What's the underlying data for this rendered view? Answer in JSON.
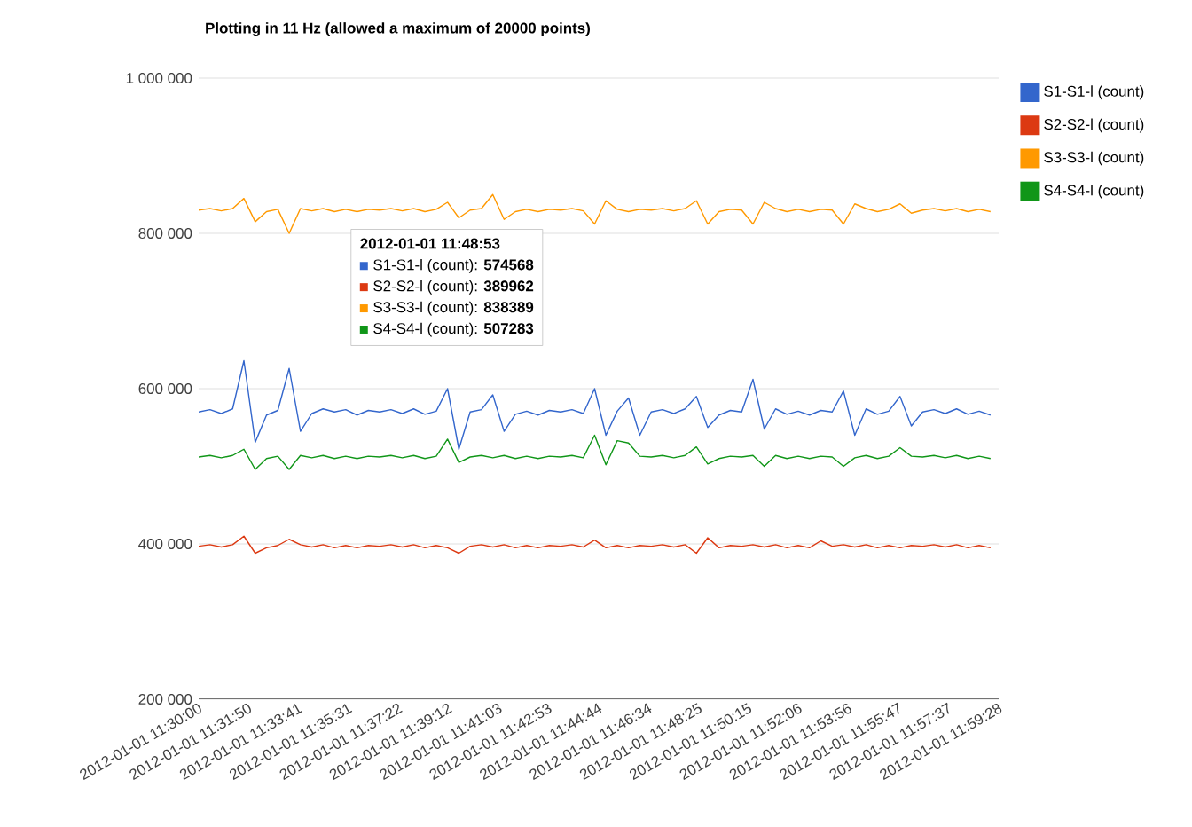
{
  "chart_data": {
    "type": "line",
    "title": "Plotting in 11 Hz (allowed a maximum of 20000 points)",
    "x": [
      "2012-01-01T11:30:00",
      "2012-01-01T11:30:25",
      "2012-01-01T11:30:50",
      "2012-01-01T11:31:15",
      "2012-01-01T11:31:40",
      "2012-01-01T11:32:05",
      "2012-01-01T11:32:30",
      "2012-01-01T11:32:55",
      "2012-01-01T11:33:20",
      "2012-01-01T11:33:45",
      "2012-01-01T11:34:10",
      "2012-01-01T11:34:35",
      "2012-01-01T11:35:00",
      "2012-01-01T11:35:25",
      "2012-01-01T11:35:50",
      "2012-01-01T11:36:15",
      "2012-01-01T11:36:40",
      "2012-01-01T11:37:05",
      "2012-01-01T11:37:30",
      "2012-01-01T11:37:55",
      "2012-01-01T11:38:20",
      "2012-01-01T11:38:45",
      "2012-01-01T11:39:10",
      "2012-01-01T11:39:35",
      "2012-01-01T11:40:00",
      "2012-01-01T11:40:25",
      "2012-01-01T11:40:50",
      "2012-01-01T11:41:15",
      "2012-01-01T11:41:40",
      "2012-01-01T11:42:05",
      "2012-01-01T11:42:30",
      "2012-01-01T11:42:55",
      "2012-01-01T11:43:20",
      "2012-01-01T11:43:45",
      "2012-01-01T11:44:10",
      "2012-01-01T11:44:35",
      "2012-01-01T11:45:00",
      "2012-01-01T11:45:25",
      "2012-01-01T11:45:50",
      "2012-01-01T11:46:15",
      "2012-01-01T11:46:40",
      "2012-01-01T11:47:05",
      "2012-01-01T11:47:30",
      "2012-01-01T11:47:55",
      "2012-01-01T11:48:20",
      "2012-01-01T11:48:45",
      "2012-01-01T11:49:10",
      "2012-01-01T11:49:35",
      "2012-01-01T11:50:00",
      "2012-01-01T11:50:25",
      "2012-01-01T11:50:50",
      "2012-01-01T11:51:15",
      "2012-01-01T11:51:40",
      "2012-01-01T11:52:05",
      "2012-01-01T11:52:30",
      "2012-01-01T11:52:55",
      "2012-01-01T11:53:20",
      "2012-01-01T11:53:45",
      "2012-01-01T11:54:10",
      "2012-01-01T11:54:35",
      "2012-01-01T11:55:00",
      "2012-01-01T11:55:25",
      "2012-01-01T11:55:50",
      "2012-01-01T11:56:15",
      "2012-01-01T11:56:40",
      "2012-01-01T11:57:05",
      "2012-01-01T11:57:30",
      "2012-01-01T11:57:55",
      "2012-01-01T11:58:20",
      "2012-01-01T11:58:45",
      "2012-01-01T11:59:10"
    ],
    "series": [
      {
        "name": "S1-S1-l (count)",
        "color": "#3366cc",
        "values": [
          570000,
          573000,
          568000,
          574000,
          636000,
          531000,
          566000,
          572000,
          626000,
          545000,
          568000,
          574000,
          570000,
          573000,
          566000,
          572000,
          570000,
          573000,
          568000,
          574000,
          567000,
          571000,
          600000,
          522000,
          570000,
          573000,
          592000,
          545000,
          567000,
          571000,
          566000,
          572000,
          570000,
          573000,
          568000,
          600000,
          540000,
          571000,
          588000,
          540000,
          570000,
          573000,
          568000,
          574000,
          590000,
          550000,
          566000,
          572000,
          570000,
          612000,
          548000,
          574000,
          567000,
          571000,
          566000,
          572000,
          570000,
          597000,
          540000,
          574000,
          567000,
          571000,
          590000,
          552000,
          570000,
          573000,
          568000,
          574000,
          567000,
          571000,
          566000
        ]
      },
      {
        "name": "S2-S2-l (count)",
        "color": "#dc3912",
        "values": [
          397000,
          399000,
          396000,
          399000,
          410000,
          388000,
          395000,
          398000,
          406000,
          399000,
          396000,
          399000,
          395000,
          398000,
          395000,
          398000,
          397000,
          399000,
          396000,
          399000,
          395000,
          398000,
          395000,
          388000,
          397000,
          399000,
          396000,
          399000,
          395000,
          398000,
          395000,
          398000,
          397000,
          399000,
          396000,
          405000,
          395000,
          398000,
          395000,
          398000,
          397000,
          399000,
          396000,
          399000,
          388000,
          408000,
          395000,
          398000,
          397000,
          399000,
          396000,
          399000,
          395000,
          398000,
          395000,
          404000,
          397000,
          399000,
          396000,
          399000,
          395000,
          398000,
          395000,
          398000,
          397000,
          399000,
          396000,
          399000,
          395000,
          398000,
          395000
        ]
      },
      {
        "name": "S3-S3-l (count)",
        "color": "#ff9900",
        "values": [
          830000,
          832000,
          829000,
          832000,
          845000,
          815000,
          828000,
          831000,
          800000,
          832000,
          829000,
          832000,
          828000,
          831000,
          828000,
          831000,
          830000,
          832000,
          829000,
          832000,
          828000,
          831000,
          840000,
          820000,
          830000,
          832000,
          850000,
          818000,
          828000,
          831000,
          828000,
          831000,
          830000,
          832000,
          829000,
          812000,
          842000,
          831000,
          828000,
          831000,
          830000,
          832000,
          829000,
          832000,
          842000,
          812000,
          828000,
          831000,
          830000,
          812000,
          840000,
          832000,
          828000,
          831000,
          828000,
          831000,
          830000,
          812000,
          838000,
          832000,
          828000,
          831000,
          838000,
          826000,
          830000,
          832000,
          829000,
          832000,
          828000,
          831000,
          828000
        ]
      },
      {
        "name": "S4-S4-l (count)",
        "color": "#109618",
        "values": [
          512000,
          514000,
          511000,
          514000,
          522000,
          496000,
          510000,
          513000,
          496000,
          514000,
          511000,
          514000,
          510000,
          513000,
          510000,
          513000,
          512000,
          514000,
          511000,
          514000,
          510000,
          513000,
          535000,
          505000,
          512000,
          514000,
          511000,
          514000,
          510000,
          513000,
          510000,
          513000,
          512000,
          514000,
          511000,
          540000,
          502000,
          533000,
          530000,
          513000,
          512000,
          514000,
          511000,
          514000,
          525000,
          503000,
          510000,
          513000,
          512000,
          514000,
          500000,
          514000,
          510000,
          513000,
          510000,
          513000,
          512000,
          500000,
          511000,
          514000,
          510000,
          513000,
          524000,
          513000,
          512000,
          514000,
          511000,
          514000,
          510000,
          513000,
          510000
        ]
      }
    ],
    "xlim": [
      "2012-01-01T11:30:00",
      "2012-01-01T11:59:28"
    ],
    "xticks": [
      {
        "value": "2012-01-01T11:30:00",
        "label": "2012-01-01 11:30:00"
      },
      {
        "value": "2012-01-01T11:31:50",
        "label": "2012-01-01 11:31:50"
      },
      {
        "value": "2012-01-01T11:33:41",
        "label": "2012-01-01 11:33:41"
      },
      {
        "value": "2012-01-01T11:35:31",
        "label": "2012-01-01 11:35:31"
      },
      {
        "value": "2012-01-01T11:37:22",
        "label": "2012-01-01 11:37:22"
      },
      {
        "value": "2012-01-01T11:39:12",
        "label": "2012-01-01 11:39:12"
      },
      {
        "value": "2012-01-01T11:41:03",
        "label": "2012-01-01 11:41:03"
      },
      {
        "value": "2012-01-01T11:42:53",
        "label": "2012-01-01 11:42:53"
      },
      {
        "value": "2012-01-01T11:44:44",
        "label": "2012-01-01 11:44:44"
      },
      {
        "value": "2012-01-01T11:46:34",
        "label": "2012-01-01 11:46:34"
      },
      {
        "value": "2012-01-01T11:48:25",
        "label": "2012-01-01 11:48:25"
      },
      {
        "value": "2012-01-01T11:50:15",
        "label": "2012-01-01 11:50:15"
      },
      {
        "value": "2012-01-01T11:52:06",
        "label": "2012-01-01 11:52:06"
      },
      {
        "value": "2012-01-01T11:53:56",
        "label": "2012-01-01 11:53:56"
      },
      {
        "value": "2012-01-01T11:55:47",
        "label": "2012-01-01 11:55:47"
      },
      {
        "value": "2012-01-01T11:57:37",
        "label": "2012-01-01 11:57:37"
      },
      {
        "value": "2012-01-01T11:59:28",
        "label": "2012-01-01 11:59:28"
      }
    ],
    "ylim": [
      200000,
      1000000
    ],
    "yticks": [
      {
        "value": 200000,
        "label": "200 000"
      },
      {
        "value": 400000,
        "label": "400 000"
      },
      {
        "value": 600000,
        "label": "600 000"
      },
      {
        "value": 800000,
        "label": "800 000"
      },
      {
        "value": 1000000,
        "label": "1 000 000"
      }
    ],
    "grid": "y",
    "legend": "right",
    "marker": "none",
    "line_style": "solid",
    "annotations": [
      "2012-01-01 11:48:53",
      "S1-S1-l (count): **574568**",
      "S2-S2-l (count): **389962**",
      "S3-S3-l (count): **838389**",
      "S4-S4-l (count): **507283**"
    ]
  }
}
